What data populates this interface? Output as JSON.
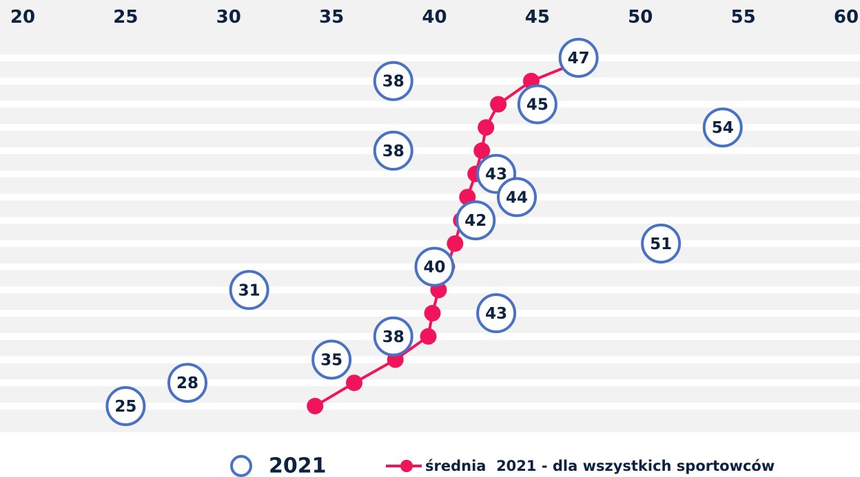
{
  "chart_data": {
    "type": "dot",
    "categories": [
      null,
      null,
      null,
      null,
      null,
      null,
      null,
      null,
      null,
      null,
      null,
      null,
      null,
      null,
      null,
      null
    ],
    "series": [
      {
        "name": "2021",
        "color": "#4a72c4",
        "values": [
          47,
          38,
          45,
          54,
          38,
          43,
          44,
          42,
          51,
          40,
          31,
          43,
          38,
          35,
          28,
          25
        ]
      },
      {
        "name": "średnia  2021 - dla wszystkich sportowców",
        "color": "#f0145a",
        "values": [
          47.5,
          44.7,
          43.1,
          42.5,
          42.3,
          42.0,
          41.6,
          41.3,
          41.0,
          40.6,
          40.2,
          39.9,
          39.7,
          38.1,
          36.1,
          34.2
        ]
      }
    ],
    "xlim": [
      20,
      60
    ],
    "xticks": [
      20,
      25,
      30,
      35,
      40,
      45,
      50,
      55,
      60
    ]
  }
}
